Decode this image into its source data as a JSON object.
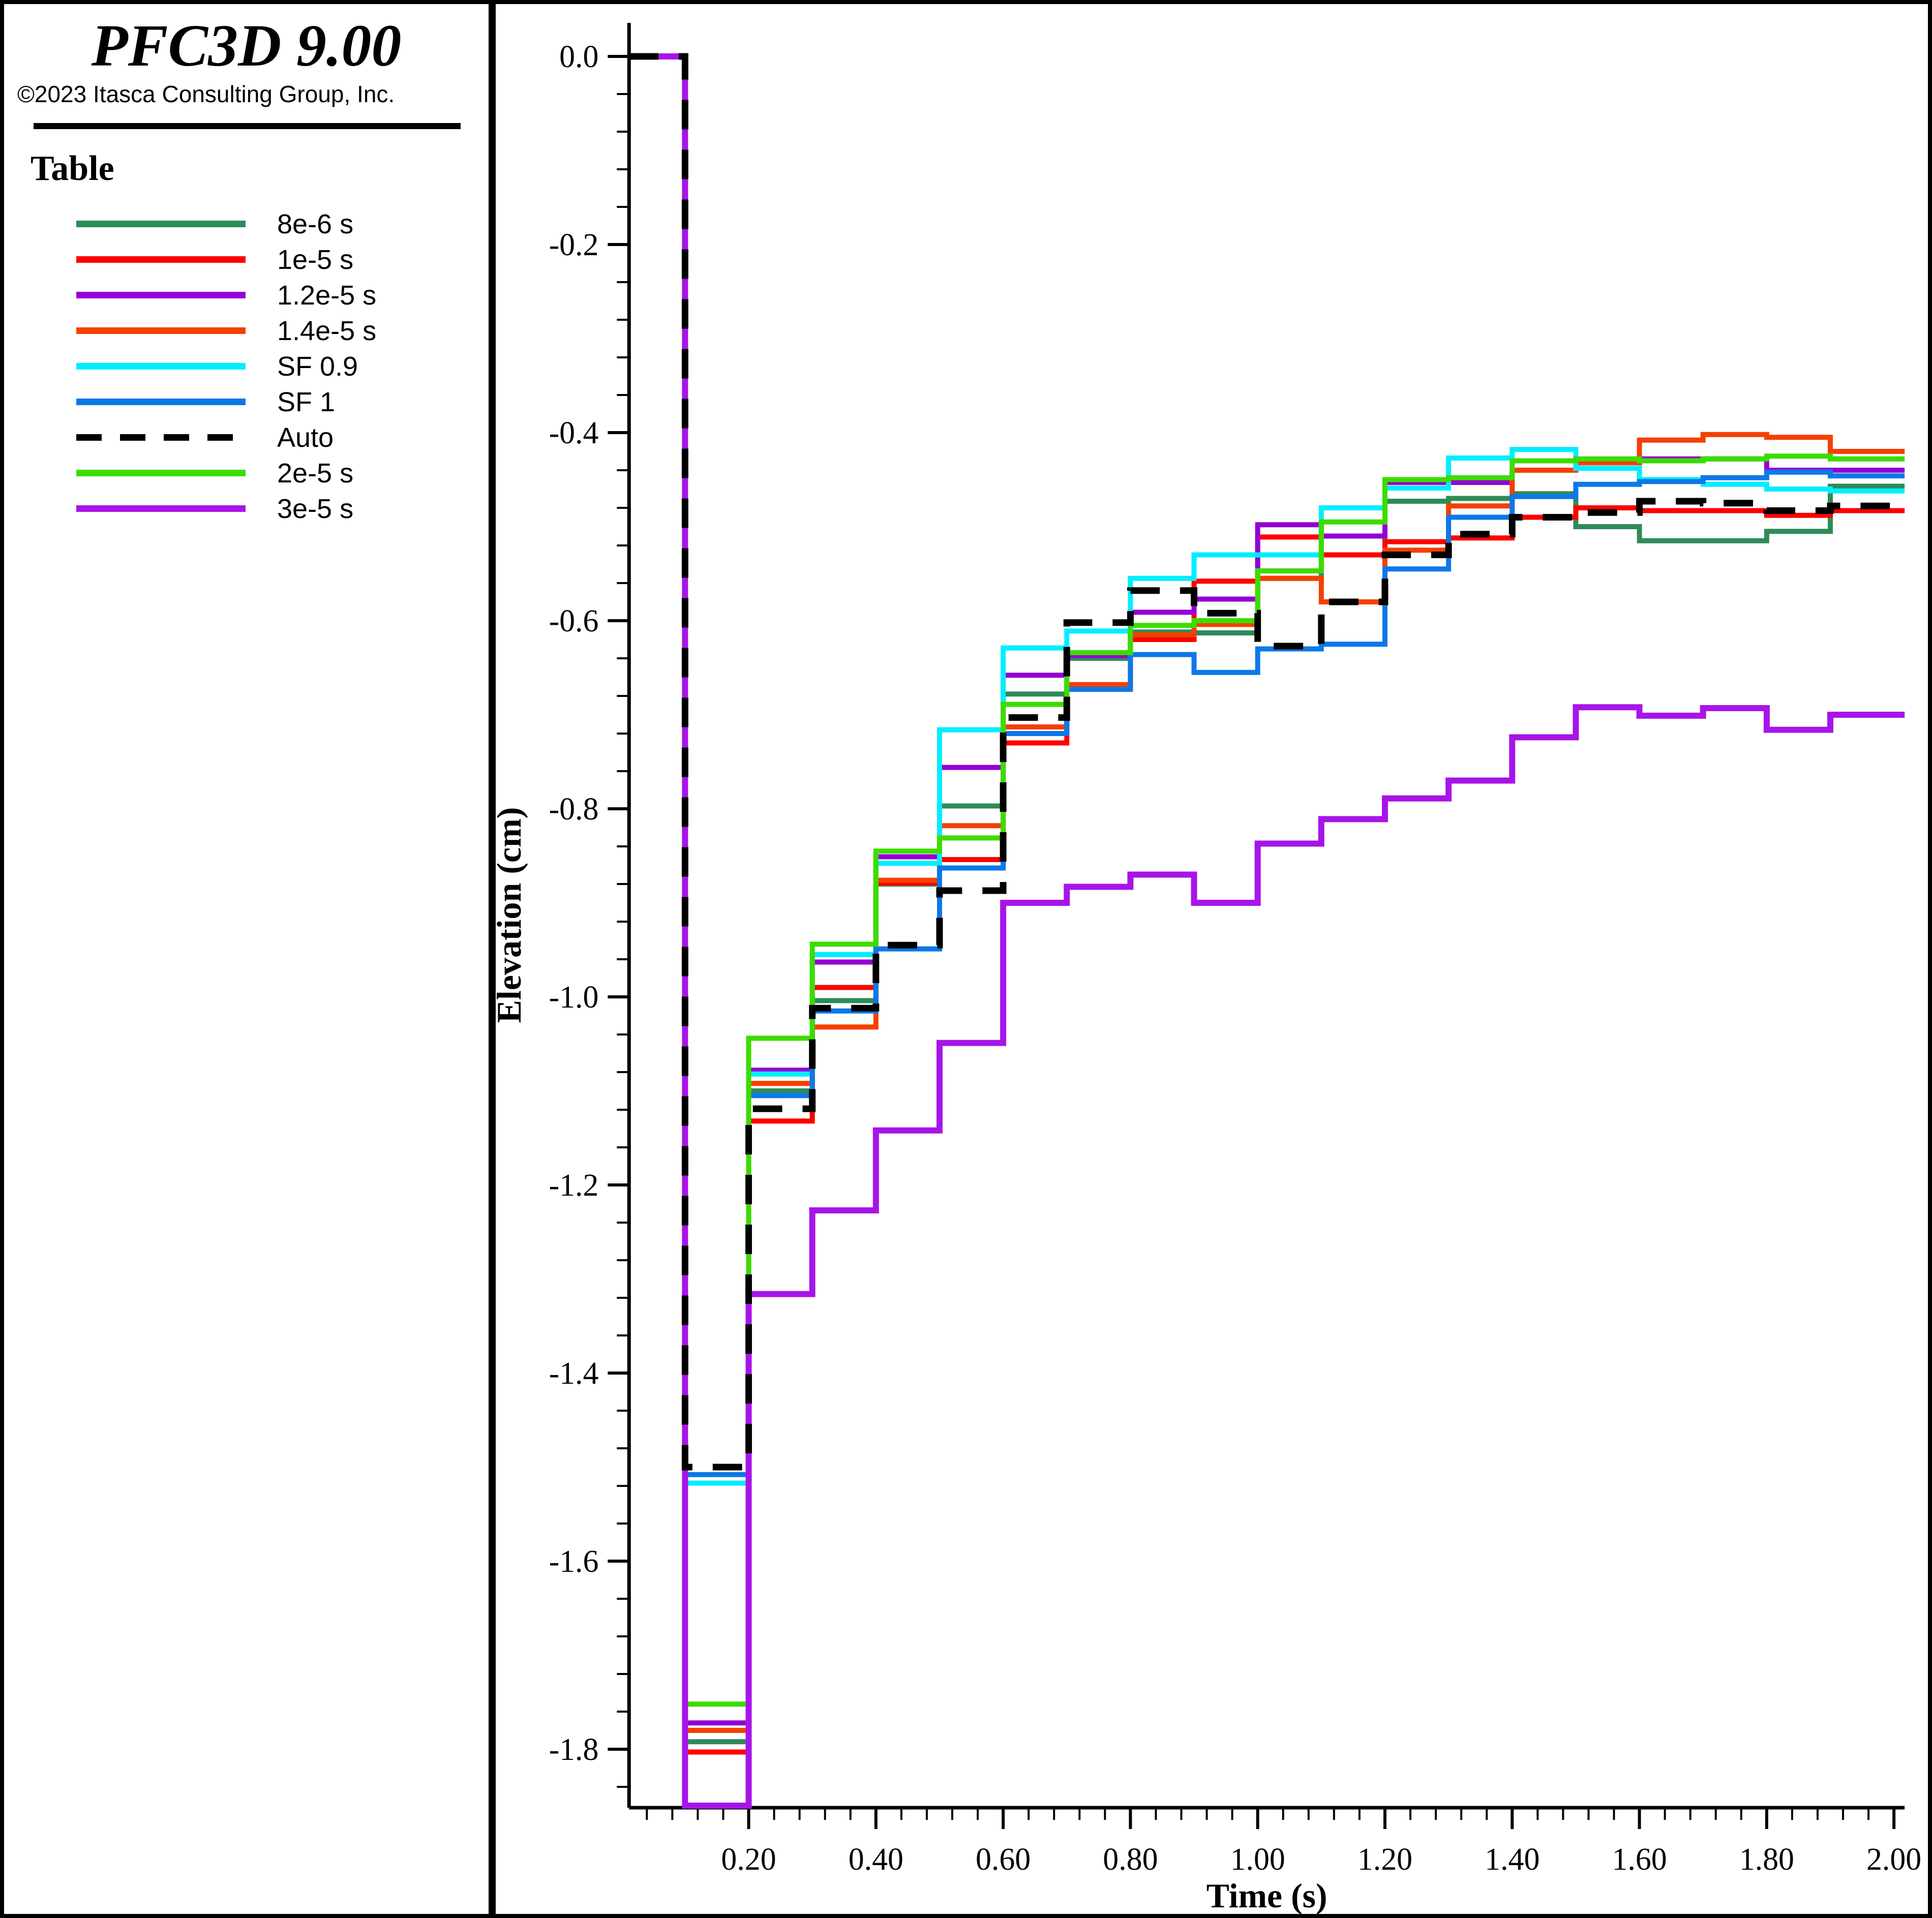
{
  "panel": {
    "title": "PFC3D 9.00",
    "copyright": "©2023 Itasca Consulting Group, Inc.",
    "legend_title": "Table"
  },
  "chart_data": {
    "type": "line",
    "step_mode": "post",
    "title": "",
    "xlabel": "Time (s)",
    "ylabel": "Elevation (cm)",
    "xlim": [
      0.01,
      2.02
    ],
    "ylim": [
      -1.87,
      0.04
    ],
    "grid": "off",
    "legend_position": "left-panel",
    "x_major_ticks": [
      0.2,
      0.4,
      0.6,
      0.8,
      1.0,
      1.2,
      1.4,
      1.6,
      1.8,
      2.0
    ],
    "y_major_ticks": [
      0.0,
      -0.2,
      -0.4,
      -0.6,
      -0.8,
      -1.0,
      -1.2,
      -1.4,
      -1.6,
      -1.8
    ],
    "minor_tick_interval": 0.04,
    "step_start_time": 0.0,
    "step_interval": 0.1,
    "series": [
      {
        "name": "8e-6 s",
        "color": "#2e8b57",
        "dash": false,
        "values": [
          0,
          -1.792,
          -1.1,
          -1.004,
          -0.88,
          -0.797,
          -0.678,
          -0.64,
          -0.612,
          -0.613,
          -0.555,
          -0.53,
          -0.473,
          -0.47,
          -0.465,
          -0.5,
          -0.515,
          -0.515,
          -0.505,
          -0.457
        ]
      },
      {
        "name": "1e-5 s",
        "color": "#ff0000",
        "dash": false,
        "values": [
          0,
          -1.803,
          -1.132,
          -0.99,
          -0.879,
          -0.854,
          -0.73,
          -0.671,
          -0.62,
          -0.558,
          -0.511,
          -0.53,
          -0.516,
          -0.512,
          -0.49,
          -0.48,
          -0.483,
          -0.483,
          -0.488,
          -0.483
        ]
      },
      {
        "name": "1.2e-5 s",
        "color": "#9400d3",
        "dash": false,
        "values": [
          0,
          -1.772,
          -1.078,
          -0.963,
          -0.851,
          -0.756,
          -0.658,
          -0.637,
          -0.591,
          -0.577,
          -0.498,
          -0.51,
          -0.453,
          -0.453,
          -0.44,
          -0.432,
          -0.428,
          -0.428,
          -0.44,
          -0.44
        ]
      },
      {
        "name": "1.4e-5 s",
        "color": "#f44000",
        "dash": false,
        "values": [
          0,
          -1.78,
          -1.092,
          -1.032,
          -0.876,
          -0.818,
          -0.713,
          -0.668,
          -0.615,
          -0.604,
          -0.555,
          -0.58,
          -0.525,
          -0.478,
          -0.44,
          -0.432,
          -0.408,
          -0.402,
          -0.405,
          -0.42
        ]
      },
      {
        "name": "SF 0.9",
        "color": "#00eeff",
        "dash": false,
        "values": [
          0,
          -1.517,
          -1.082,
          -0.955,
          -0.858,
          -0.716,
          -0.629,
          -0.611,
          -0.555,
          -0.53,
          -0.53,
          -0.48,
          -0.459,
          -0.427,
          -0.418,
          -0.438,
          -0.45,
          -0.455,
          -0.46,
          -0.462
        ]
      },
      {
        "name": "SF 1",
        "color": "#0c78e8",
        "dash": false,
        "values": [
          0,
          -1.508,
          -1.105,
          -1.015,
          -0.949,
          -0.863,
          -0.72,
          -0.673,
          -0.636,
          -0.655,
          -0.63,
          -0.625,
          -0.545,
          -0.49,
          -0.468,
          -0.455,
          -0.452,
          -0.448,
          -0.442,
          -0.446
        ]
      },
      {
        "name": "Auto",
        "color": "#000000",
        "dash": true,
        "values": [
          0,
          -1.5,
          -1.119,
          -1.012,
          -0.945,
          -0.887,
          -0.703,
          -0.602,
          -0.568,
          -0.592,
          -0.627,
          -0.58,
          -0.53,
          -0.508,
          -0.49,
          -0.485,
          -0.473,
          -0.475,
          -0.483,
          -0.478
        ]
      },
      {
        "name": "2e-5 s",
        "color": "#3ddc00",
        "dash": false,
        "values": [
          0,
          -1.752,
          -1.044,
          -0.944,
          -0.845,
          -0.831,
          -0.689,
          -0.634,
          -0.605,
          -0.6,
          -0.547,
          -0.495,
          -0.45,
          -0.448,
          -0.43,
          -0.428,
          -0.43,
          -0.428,
          -0.425,
          -0.428
        ]
      },
      {
        "name": "3e-5 s",
        "color": "#a814e8",
        "dash": false,
        "values": [
          0,
          -1.86,
          -1.316,
          -1.227,
          -1.142,
          -1.049,
          -0.9,
          -0.883,
          -0.87,
          -0.9,
          -0.837,
          -0.811,
          -0.789,
          -0.77,
          -0.724,
          -0.692,
          -0.701,
          -0.693,
          -0.716,
          -0.7
        ]
      }
    ]
  }
}
